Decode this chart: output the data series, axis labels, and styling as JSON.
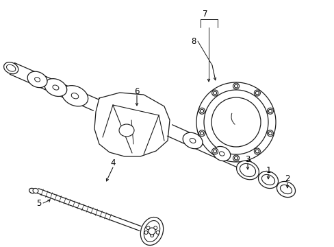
{
  "bg_color": "#ffffff",
  "line_color": "#1a1a1a",
  "figsize": [
    4.89,
    3.6
  ],
  "dpi": 100,
  "xlim": [
    0,
    489
  ],
  "ylim": [
    360,
    0
  ]
}
